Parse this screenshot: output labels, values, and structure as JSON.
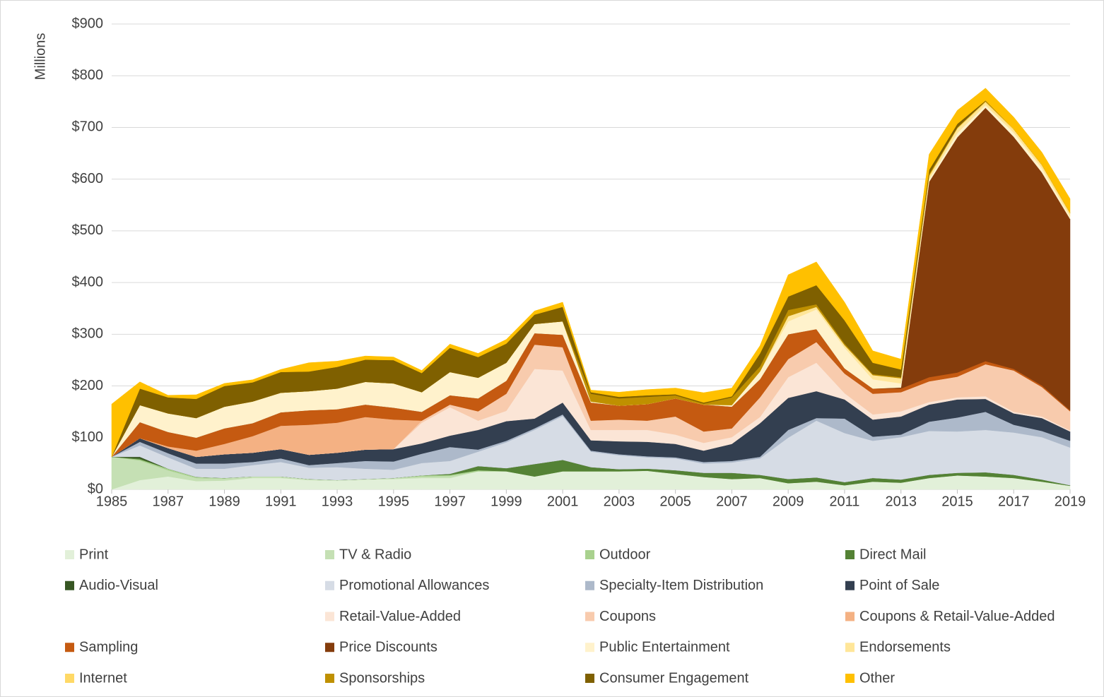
{
  "chart_data": {
    "type": "stacked-area",
    "axis_label_y": "Millions",
    "x": [
      1985,
      1986,
      1987,
      1988,
      1989,
      1990,
      1991,
      1992,
      1993,
      1994,
      1995,
      1996,
      1997,
      1998,
      1999,
      2000,
      2001,
      2002,
      2003,
      2004,
      2005,
      2006,
      2007,
      2008,
      2009,
      2010,
      2011,
      2012,
      2013,
      2014,
      2015,
      2016,
      2017,
      2018,
      2019
    ],
    "xlim": [
      1985,
      2019
    ],
    "xticks": [
      1985,
      1987,
      1989,
      1991,
      1993,
      1995,
      1997,
      1999,
      2001,
      2003,
      2005,
      2007,
      2009,
      2011,
      2013,
      2015,
      2017,
      2019
    ],
    "ylim": [
      0,
      900
    ],
    "yticks": [
      {
        "value": 0,
        "label": "$0"
      },
      {
        "value": 100,
        "label": "$100"
      },
      {
        "value": 200,
        "label": "$200"
      },
      {
        "value": 300,
        "label": "$300"
      },
      {
        "value": 400,
        "label": "$400"
      },
      {
        "value": 500,
        "label": "$500"
      },
      {
        "value": 600,
        "label": "$600"
      },
      {
        "value": 700,
        "label": "$700"
      },
      {
        "value": 800,
        "label": "$800"
      },
      {
        "value": 900,
        "label": "$900"
      }
    ],
    "grid": true,
    "legend": "bottom",
    "series": [
      {
        "name": "Print",
        "color": "#e2f0d9",
        "values": [
          0,
          18,
          25,
          16,
          17,
          22,
          22,
          18,
          17,
          19,
          20,
          22,
          22,
          35,
          35,
          25,
          35,
          35,
          35,
          36,
          30,
          24,
          20,
          22,
          12,
          15,
          8,
          15,
          13,
          22,
          27,
          25,
          22,
          15,
          7
        ]
      },
      {
        "name": "TV & Radio",
        "color": "#c5e0b4",
        "values": [
          63,
          38,
          12,
          6,
          4,
          3,
          3,
          2,
          1,
          1,
          2,
          3,
          4,
          0,
          0,
          0,
          0,
          0,
          0,
          0,
          0,
          0,
          0,
          0,
          0,
          0,
          0,
          0,
          0,
          0,
          0,
          0,
          0,
          0,
          0
        ]
      },
      {
        "name": "Outdoor",
        "color": "#a9d18e",
        "values": [
          0,
          2,
          3,
          2,
          1,
          0,
          0,
          0,
          0,
          0,
          0,
          2,
          2,
          2,
          0,
          0,
          0,
          0,
          0,
          0,
          0,
          0,
          0,
          0,
          0,
          0,
          0,
          0,
          0,
          0,
          0,
          0,
          0,
          0,
          0
        ]
      },
      {
        "name": "Direct Mail",
        "color": "#548235",
        "values": [
          0,
          2,
          0,
          0,
          0,
          0,
          0,
          0,
          0,
          0,
          0,
          0,
          2,
          8,
          6,
          24,
          22,
          8,
          4,
          4,
          7,
          8,
          12,
          6,
          8,
          8,
          6,
          7,
          6,
          6,
          5,
          8,
          6,
          4,
          1
        ]
      },
      {
        "name": "Audio-Visual",
        "color": "#375623",
        "values": [
          0,
          3,
          0,
          0,
          0,
          0,
          0,
          0,
          0,
          0,
          0,
          0,
          0,
          0,
          0,
          0,
          0,
          0,
          0,
          0,
          0,
          0,
          0,
          0,
          0,
          0,
          0,
          0,
          0,
          0,
          0,
          0,
          0,
          0,
          0
        ]
      },
      {
        "name": "Promotional Allowances",
        "color": "#d6dce5",
        "values": [
          0,
          22,
          22,
          16,
          18,
          22,
          28,
          22,
          25,
          20,
          16,
          24,
          25,
          28,
          50,
          66,
          85,
          30,
          27,
          22,
          23,
          18,
          20,
          32,
          80,
          110,
          95,
          72,
          82,
          85,
          80,
          82,
          82,
          82,
          73
        ]
      },
      {
        "name": "Specialty-Item Distribution",
        "color": "#adb9ca",
        "values": [
          0,
          7,
          8,
          10,
          10,
          6,
          7,
          5,
          8,
          15,
          16,
          18,
          27,
          4,
          3,
          3,
          3,
          2,
          2,
          2,
          2,
          3,
          3,
          3,
          15,
          5,
          28,
          8,
          5,
          18,
          27,
          35,
          15,
          12,
          13
        ]
      },
      {
        "name": "Point of Sale",
        "color": "#333f50",
        "values": [
          0,
          7,
          10,
          13,
          18,
          18,
          18,
          20,
          20,
          22,
          24,
          20,
          22,
          38,
          38,
          19,
          23,
          20,
          25,
          28,
          26,
          22,
          33,
          65,
          62,
          52,
          37,
          33,
          35,
          33,
          35,
          25,
          22,
          25,
          18
        ]
      },
      {
        "name": "Retail-Value-Added",
        "color": "#fbe5d6",
        "values": [
          0,
          0,
          0,
          0,
          0,
          0,
          0,
          0,
          0,
          0,
          0,
          40,
          55,
          18,
          20,
          96,
          62,
          20,
          22,
          23,
          18,
          15,
          13,
          12,
          40,
          55,
          12,
          10,
          10,
          5,
          4,
          5,
          3,
          3,
          2
        ]
      },
      {
        "name": "Coupons",
        "color": "#f8cbad",
        "values": [
          0,
          0,
          0,
          0,
          0,
          0,
          0,
          0,
          0,
          0,
          0,
          4,
          5,
          18,
          33,
          47,
          45,
          18,
          20,
          18,
          35,
          22,
          17,
          38,
          35,
          40,
          38,
          40,
          37,
          40,
          40,
          62,
          80,
          57,
          37
        ]
      },
      {
        "name": "Coupons & Retail-Value-Added",
        "color": "#f4b183",
        "values": [
          0,
          0,
          3,
          12,
          20,
          32,
          45,
          58,
          58,
          63,
          57,
          0,
          0,
          0,
          0,
          0,
          0,
          0,
          0,
          0,
          0,
          0,
          0,
          0,
          0,
          0,
          0,
          0,
          0,
          0,
          0,
          0,
          0,
          0,
          0
        ]
      },
      {
        "name": "Sampling",
        "color": "#c55a11",
        "values": [
          0,
          31,
          28,
          25,
          30,
          25,
          26,
          28,
          26,
          24,
          23,
          17,
          18,
          25,
          25,
          22,
          24,
          35,
          27,
          32,
          35,
          52,
          42,
          35,
          48,
          25,
          10,
          10,
          7,
          8,
          8,
          6,
          3,
          3,
          2
        ]
      },
      {
        "name": "Price Discounts",
        "color": "#843c0c",
        "values": [
          0,
          0,
          0,
          0,
          0,
          0,
          0,
          0,
          0,
          0,
          0,
          0,
          0,
          0,
          0,
          0,
          0,
          0,
          0,
          0,
          0,
          0,
          0,
          0,
          0,
          0,
          0,
          0,
          2,
          378,
          455,
          490,
          449,
          412,
          370
        ]
      },
      {
        "name": "Public Entertainment",
        "color": "#fff2cc",
        "values": [
          0,
          33,
          36,
          38,
          42,
          42,
          38,
          37,
          40,
          44,
          47,
          38,
          45,
          40,
          35,
          18,
          26,
          2,
          0,
          0,
          0,
          0,
          3,
          15,
          25,
          38,
          40,
          18,
          8,
          5,
          8,
          5,
          8,
          8,
          5
        ]
      },
      {
        "name": "Endorsements",
        "color": "#ffe699",
        "values": [
          0,
          0,
          0,
          0,
          0,
          0,
          0,
          0,
          0,
          0,
          0,
          0,
          0,
          0,
          0,
          0,
          0,
          0,
          0,
          0,
          0,
          0,
          0,
          0,
          10,
          5,
          5,
          8,
          10,
          5,
          8,
          5,
          5,
          5,
          5
        ]
      },
      {
        "name": "Internet",
        "color": "#ffd966",
        "values": [
          0,
          0,
          0,
          0,
          0,
          0,
          0,
          0,
          0,
          0,
          0,
          0,
          0,
          0,
          0,
          0,
          0,
          0,
          0,
          0,
          0,
          0,
          0,
          0,
          0,
          0,
          0,
          0,
          0,
          2,
          2,
          2,
          2,
          2,
          2
        ]
      },
      {
        "name": "Sponsorships",
        "color": "#bf9000",
        "values": [
          0,
          0,
          0,
          0,
          0,
          0,
          0,
          0,
          0,
          0,
          0,
          0,
          0,
          0,
          0,
          0,
          0,
          15,
          14,
          14,
          6,
          2,
          15,
          10,
          12,
          5,
          3,
          2,
          2,
          3,
          1,
          1,
          0,
          0,
          0
        ]
      },
      {
        "name": "Consumer Engagement",
        "color": "#7f6000",
        "values": [
          0,
          32,
          31,
          37,
          40,
          37,
          40,
          38,
          42,
          43,
          45,
          37,
          47,
          40,
          37,
          18,
          28,
          3,
          3,
          3,
          2,
          2,
          2,
          25,
          26,
          37,
          45,
          22,
          15,
          8,
          7,
          1,
          0,
          0,
          0
        ]
      },
      {
        "name": "Other",
        "color": "#ffc000",
        "values": [
          102,
          13,
          4,
          8,
          5,
          5,
          5,
          17,
          11,
          7,
          6,
          5,
          7,
          7,
          8,
          7,
          9,
          4,
          9,
          11,
          12,
          19,
          16,
          15,
          42,
          45,
          35,
          23,
          20,
          30,
          26,
          24,
          23,
          24,
          27
        ]
      }
    ]
  }
}
